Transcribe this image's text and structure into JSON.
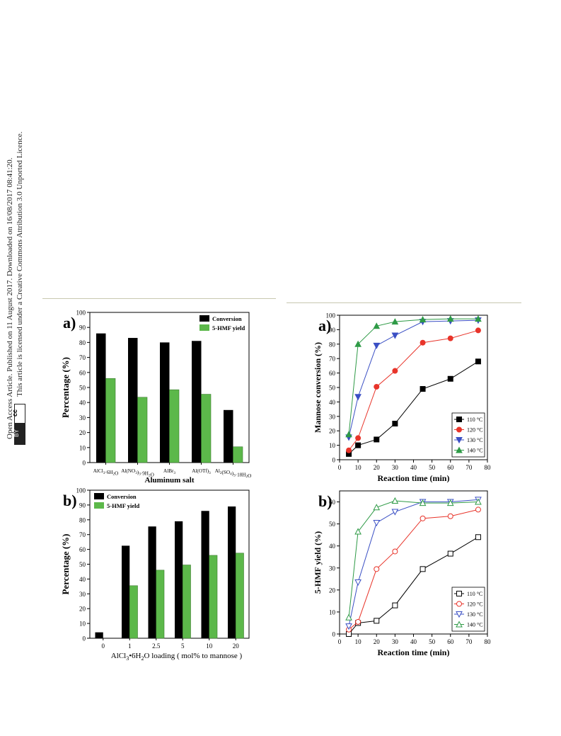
{
  "sidebar": {
    "line1": "Open Access Article. Published on 11 August 2017. Downloaded on 16/08/2017 08:41:20.",
    "line2": "This article is licensed under a Creative Commons Attribution 3.0 Unported Licence.",
    "cc_label": "cc",
    "by_label": "BY"
  },
  "colors": {
    "conversion": "#000000",
    "yield": "#5cb84a",
    "t110": "#000000",
    "t120": "#e8342a",
    "t130": "#3a4fc4",
    "t140": "#2e9a46"
  },
  "chart_data": [
    {
      "id": "bar-a",
      "type": "bar",
      "panel_label": "a)",
      "categories": [
        "AlCl3·6H2O",
        "Al(NO3)3·9H2O",
        "AlBr3",
        "Al(OTf)3",
        "Al2(SO4)3·18H2O"
      ],
      "category_labels": [
        "AlCl",
        "Al(NO",
        "AlBr",
        "Al(OTf)",
        "Al"
      ],
      "series": [
        {
          "name": "Conversion",
          "values": [
            86,
            83,
            80,
            81,
            35
          ]
        },
        {
          "name": "5-HMF yield",
          "values": [
            56,
            43.5,
            48.5,
            45.5,
            10.5
          ]
        }
      ],
      "xlabel": "Aluminum salt",
      "ylabel": "Percentage (%)",
      "ylim": [
        0,
        100
      ],
      "yticks": [
        0,
        10,
        20,
        30,
        40,
        50,
        60,
        70,
        80,
        90,
        100
      ],
      "legend": "top-right"
    },
    {
      "id": "bar-b",
      "type": "bar",
      "panel_label": "b)",
      "categories": [
        "0",
        "1",
        "2.5",
        "5",
        "10",
        "20"
      ],
      "series": [
        {
          "name": "Conversion",
          "values": [
            4,
            62.5,
            75.5,
            79,
            86,
            89
          ]
        },
        {
          "name": "5-HMF yield",
          "values": [
            0,
            35.5,
            46,
            49.5,
            56,
            57.5
          ]
        }
      ],
      "xlabel": "AlCl3•6H2O loading ( mol% to mannose )",
      "ylabel": "Percentage (%)",
      "ylim": [
        0,
        100
      ],
      "yticks": [
        0,
        10,
        20,
        30,
        40,
        50,
        60,
        70,
        80,
        90,
        100
      ],
      "legend": "top-left"
    },
    {
      "id": "line-a",
      "type": "line",
      "panel_label": "a)",
      "x": [
        5,
        10,
        20,
        30,
        45,
        60,
        75
      ],
      "series": [
        {
          "name": "110 °C",
          "marker": "square",
          "values": [
            4,
            10,
            14,
            25,
            49,
            56,
            68
          ]
        },
        {
          "name": "120 °C",
          "marker": "circle",
          "values": [
            6.5,
            15,
            50.5,
            61.5,
            81,
            84,
            89.5
          ]
        },
        {
          "name": "130 °C",
          "marker": "tri-down",
          "values": [
            15.5,
            43.5,
            79,
            86,
            95.5,
            96,
            96.5
          ]
        },
        {
          "name": "140 °C",
          "marker": "tri-up",
          "values": [
            17.5,
            80,
            92.5,
            95.5,
            97,
            97.5,
            97.5
          ]
        }
      ],
      "xlabel": "Reaction time (min)",
      "ylabel": "Mannose conversion (%)",
      "xlim": [
        0,
        80
      ],
      "ylim": [
        0,
        100
      ],
      "xticks": [
        0,
        10,
        20,
        30,
        40,
        50,
        60,
        70,
        80
      ],
      "yticks": [
        0,
        10,
        20,
        30,
        40,
        50,
        60,
        70,
        80,
        90,
        100
      ],
      "legend": "bottom-right",
      "filled": true
    },
    {
      "id": "line-b",
      "type": "line",
      "panel_label": "b)",
      "x": [
        5,
        10,
        20,
        30,
        45,
        60,
        75
      ],
      "series": [
        {
          "name": "110 °C",
          "marker": "square",
          "values": [
            0,
            5,
            6,
            13,
            29.5,
            36.5,
            44
          ]
        },
        {
          "name": "120 °C",
          "marker": "circle",
          "values": [
            2,
            5.5,
            29.5,
            37.5,
            52.5,
            53.5,
            56.5
          ]
        },
        {
          "name": "130 °C",
          "marker": "tri-down",
          "values": [
            3.5,
            23.5,
            50.5,
            55.5,
            60,
            60,
            61
          ]
        },
        {
          "name": "140 °C",
          "marker": "tri-up",
          "values": [
            7.5,
            46.5,
            57.5,
            60.5,
            59.5,
            59.5,
            60
          ]
        }
      ],
      "xlabel": "Reaction time (min)",
      "ylabel": "5-HMF yield (%)",
      "xlim": [
        0,
        80
      ],
      "ylim": [
        0,
        65
      ],
      "xticks": [
        0,
        10,
        20,
        30,
        40,
        50,
        60,
        70,
        80
      ],
      "yticks": [
        0,
        10,
        20,
        30,
        40,
        50,
        60
      ],
      "legend": "bottom-right",
      "filled": false
    }
  ]
}
